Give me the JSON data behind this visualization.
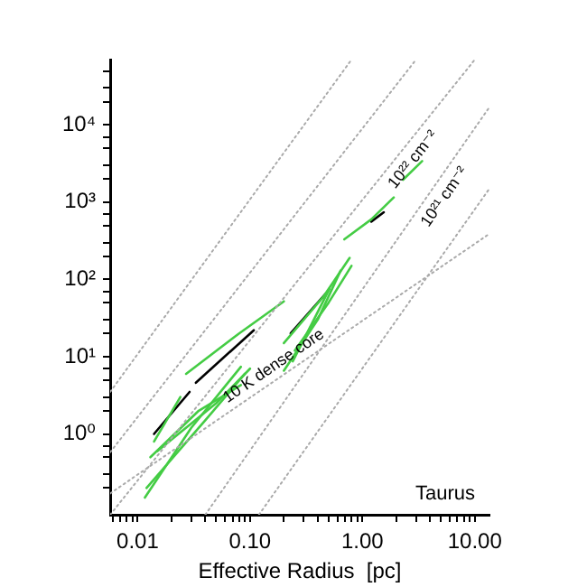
{
  "chart_data": {
    "type": "line",
    "xlabel": "Effective Radius  [pc]",
    "log": "xy",
    "grid": false,
    "legend": false,
    "marker": "none",
    "line_style": "solid",
    "xlim": [
      0.0057,
      13.5
    ],
    "ylim": [
      0.09,
      70000
    ],
    "xticks": [
      {
        "value": 0.006,
        "label": null
      },
      {
        "value": 0.007,
        "label": null
      },
      {
        "value": 0.008,
        "label": null
      },
      {
        "value": 0.009,
        "label": null
      },
      {
        "value": 0.01,
        "label": "0.01"
      },
      {
        "value": 0.02,
        "label": null
      },
      {
        "value": 0.03,
        "label": null
      },
      {
        "value": 0.04,
        "label": null
      },
      {
        "value": 0.05,
        "label": null
      },
      {
        "value": 0.06,
        "label": null
      },
      {
        "value": 0.07,
        "label": null
      },
      {
        "value": 0.08,
        "label": null
      },
      {
        "value": 0.09,
        "label": null
      },
      {
        "value": 0.1,
        "label": "0.10"
      },
      {
        "value": 0.2,
        "label": null
      },
      {
        "value": 0.3,
        "label": null
      },
      {
        "value": 0.4,
        "label": null
      },
      {
        "value": 0.5,
        "label": null
      },
      {
        "value": 0.6,
        "label": null
      },
      {
        "value": 0.7,
        "label": null
      },
      {
        "value": 0.8,
        "label": null
      },
      {
        "value": 0.9,
        "label": null
      },
      {
        "value": 1,
        "label": "1.00"
      },
      {
        "value": 2,
        "label": null
      },
      {
        "value": 3,
        "label": null
      },
      {
        "value": 4,
        "label": null
      },
      {
        "value": 5,
        "label": null
      },
      {
        "value": 6,
        "label": null
      },
      {
        "value": 7,
        "label": null
      },
      {
        "value": 8,
        "label": null
      },
      {
        "value": 9,
        "label": null
      },
      {
        "value": 10,
        "label": "10.00"
      }
    ],
    "yticks": [
      {
        "value": 0.2,
        "label": null
      },
      {
        "value": 0.3,
        "label": null
      },
      {
        "value": 0.5,
        "label": null
      },
      {
        "value": 0.7,
        "label": null
      },
      {
        "value": 1,
        "label": "10⁰"
      },
      {
        "value": 2,
        "label": null
      },
      {
        "value": 3,
        "label": null
      },
      {
        "value": 5,
        "label": null
      },
      {
        "value": 7,
        "label": null
      },
      {
        "value": 10,
        "label": "10¹"
      },
      {
        "value": 20,
        "label": null
      },
      {
        "value": 30,
        "label": null
      },
      {
        "value": 50,
        "label": null
      },
      {
        "value": 70,
        "label": null
      },
      {
        "value": 100,
        "label": "10²"
      },
      {
        "value": 200,
        "label": null
      },
      {
        "value": 300,
        "label": null
      },
      {
        "value": 500,
        "label": null
      },
      {
        "value": 700,
        "label": null
      },
      {
        "value": 1000,
        "label": "10³"
      },
      {
        "value": 2000,
        "label": null
      },
      {
        "value": 3000,
        "label": null
      },
      {
        "value": 5000,
        "label": null
      },
      {
        "value": 7000,
        "label": null
      },
      {
        "value": 10000,
        "label": "10⁴"
      },
      {
        "value": 20000,
        "label": null
      },
      {
        "value": 30000,
        "label": null
      },
      {
        "value": 50000,
        "label": null
      }
    ],
    "series": [
      {
        "color": "#aaaaaa",
        "line_style": "dotted",
        "x": [
          0.0057,
          0.8
        ],
        "values": [
          3.5,
          70000
        ]
      },
      {
        "color": "#aaaaaa",
        "line_style": "dotted",
        "x": [
          0.0057,
          3.0
        ],
        "values": [
          0.58,
          70000
        ]
      },
      {
        "name": "10²² cm⁻²",
        "color": "#aaaaaa",
        "line_style": "dotted",
        "x": [
          0.0057,
          10
        ],
        "values": [
          0.09,
          70000
        ]
      },
      {
        "name": "10²¹ cm⁻²",
        "color": "#aaaaaa",
        "line_style": "dotted",
        "x": [
          0.04,
          13.5
        ],
        "values": [
          0.09,
          17000
        ]
      },
      {
        "color": "#aaaaaa",
        "line_style": "dotted",
        "x": [
          0.12,
          13.5
        ],
        "values": [
          0.09,
          1500
        ]
      },
      {
        "name": "10 K dense core",
        "color": "#aaaaaa",
        "line_style": "dotted",
        "x": [
          0.0057,
          13.5
        ],
        "values": [
          0.17,
          390
        ]
      },
      {
        "color": "#44cc44",
        "x": [
          0.0116,
          0.03,
          0.083
        ],
        "values": [
          0.15,
          1.2,
          7.4
        ]
      },
      {
        "color": "#44cc44",
        "x": [
          0.013,
          0.035,
          0.083
        ],
        "values": [
          0.5,
          2.0,
          4.3
        ]
      },
      {
        "color": "#44cc44",
        "x": [
          0.014,
          0.024
        ],
        "values": [
          0.8,
          3.0
        ]
      },
      {
        "color": "#44cc44",
        "x": [
          0.027,
          0.08,
          0.2
        ],
        "values": [
          6,
          20,
          52
        ]
      },
      {
        "color": "#44cc44",
        "x": [
          0.012,
          0.04,
          0.09
        ],
        "values": [
          0.2,
          1.5,
          6
        ]
      },
      {
        "color": "#44cc44",
        "x": [
          0.015,
          0.05,
          0.1
        ],
        "values": [
          0.6,
          2.5,
          7
        ]
      },
      {
        "color": "#44cc44",
        "x": [
          0.2,
          0.4,
          0.64
        ],
        "values": [
          6.6,
          30,
          130
        ]
      },
      {
        "color": "#44cc44",
        "x": [
          0.2,
          0.45,
          0.77
        ],
        "values": [
          15,
          60,
          190
        ]
      },
      {
        "color": "#44cc44",
        "x": [
          0.24,
          0.51
        ],
        "values": [
          8.7,
          76
        ]
      },
      {
        "color": "#44cc44",
        "x": [
          0.25,
          0.5,
          0.8
        ],
        "values": [
          12,
          50,
          150
        ]
      },
      {
        "color": "#44cc44",
        "x": [
          0.69,
          1.2,
          1.9
        ],
        "values": [
          330,
          600,
          1150
        ]
      },
      {
        "color": "#44cc44",
        "x": [
          2.3,
          3.4
        ],
        "values": [
          1950,
          3400
        ]
      },
      {
        "color": "#000000",
        "x": [
          0.014,
          0.029
        ],
        "values": [
          1.0,
          3.5
        ]
      },
      {
        "color": "#000000",
        "x": [
          0.033,
          0.108
        ],
        "values": [
          4.6,
          22
        ]
      },
      {
        "color": "#000000",
        "x": [
          0.23,
          0.47
        ],
        "values": [
          20,
          65
        ]
      },
      {
        "color": "#000000",
        "x": [
          1.2,
          1.55
        ],
        "values": [
          560,
          740
        ]
      }
    ],
    "annotations": [
      "Taurus"
    ]
  }
}
